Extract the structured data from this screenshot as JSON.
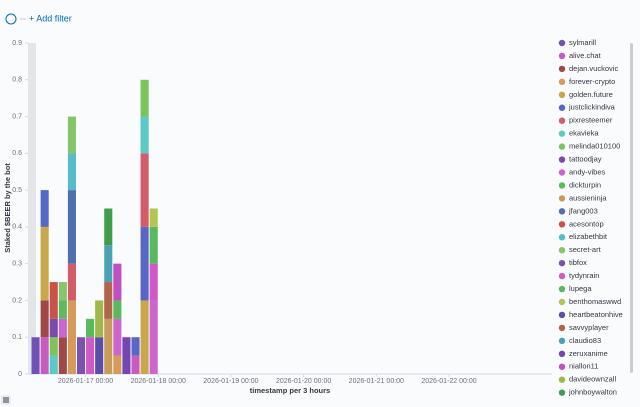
{
  "filter_bar": {
    "add_filter": "+ Add filter"
  },
  "chart_data": {
    "type": "bar",
    "stacked": true,
    "y_label": "Staked $BEER by the bot",
    "x_label": "timestamp per 3 hours",
    "ylim": [
      0,
      0.9
    ],
    "yticks": [
      0,
      0.1,
      0.2,
      0.3,
      0.4,
      0.5,
      0.6,
      0.7,
      0.8,
      0.9
    ],
    "xlim": [
      "2026-01-16 05:00",
      "2026-01-23 10:00"
    ],
    "xticks": [
      "2026-01-17 00:00",
      "2026-01-18 00:00",
      "2026-01-19 00:00",
      "2026-01-20 00:00",
      "2026-01-21 00:00",
      "2026-01-22 00:00"
    ],
    "bucket_hours": 3,
    "x": [
      "2026-01-16 06:00",
      "2026-01-16 09:00",
      "2026-01-16 12:00",
      "2026-01-16 15:00",
      "2026-01-16 18:00",
      "2026-01-16 21:00",
      "2026-01-17 00:00",
      "2026-01-17 03:00",
      "2026-01-17 06:00",
      "2026-01-17 09:00",
      "2026-01-17 12:00",
      "2026-01-17 15:00",
      "2026-01-17 18:00",
      "2026-01-17 21:00"
    ],
    "legend": "right",
    "series": [
      {
        "name": "sylmarill",
        "color": "#6f52b3",
        "values": [
          0.1,
          null,
          null,
          null,
          null,
          null,
          null,
          null,
          null,
          null,
          null,
          null,
          null,
          null
        ]
      },
      {
        "name": "alive.chat",
        "color": "#c75bc0",
        "values": [
          null,
          0.1,
          null,
          null,
          null,
          null,
          null,
          null,
          null,
          null,
          null,
          0.05,
          null,
          null
        ]
      },
      {
        "name": "dejan.vuckovic",
        "color": "#a04848",
        "values": [
          null,
          0.1,
          null,
          0.1,
          null,
          null,
          null,
          null,
          null,
          null,
          null,
          null,
          null,
          null
        ]
      },
      {
        "name": "forever-crypto",
        "color": "#d69a5a",
        "values": [
          null,
          null,
          null,
          null,
          0.2,
          null,
          null,
          null,
          null,
          0.05,
          null,
          null,
          null,
          null
        ]
      },
      {
        "name": "golden.future",
        "color": "#c9a84a",
        "values": [
          null,
          0.2,
          null,
          null,
          null,
          null,
          null,
          null,
          null,
          null,
          null,
          null,
          0.2,
          null
        ]
      },
      {
        "name": "justclickindiva",
        "color": "#5766c7",
        "values": [
          null,
          0.1,
          null,
          null,
          null,
          null,
          null,
          null,
          null,
          null,
          null,
          0.05,
          0.2,
          null
        ]
      },
      {
        "name": "pixresteemer",
        "color": "#d45c6a",
        "values": [
          null,
          null,
          null,
          null,
          0.1,
          null,
          null,
          null,
          null,
          null,
          null,
          null,
          0.2,
          null
        ]
      },
      {
        "name": "ekavieka",
        "color": "#5cc9c4",
        "values": [
          null,
          null,
          0.05,
          null,
          null,
          null,
          null,
          null,
          null,
          null,
          null,
          null,
          0.1,
          null
        ]
      },
      {
        "name": "melinda010100",
        "color": "#7cc35c",
        "values": [
          null,
          null,
          0.05,
          null,
          null,
          null,
          null,
          null,
          null,
          null,
          null,
          null,
          0.1,
          null
        ]
      },
      {
        "name": "tattoodjay",
        "color": "#7a4ba8",
        "values": [
          null,
          null,
          0.05,
          null,
          null,
          null,
          null,
          null,
          null,
          null,
          null,
          null,
          null,
          null
        ]
      },
      {
        "name": "andy-vibes",
        "color": "#cc66cc",
        "values": [
          null,
          null,
          null,
          0.05,
          null,
          null,
          null,
          null,
          null,
          0.1,
          null,
          null,
          null,
          0.2
        ]
      },
      {
        "name": "dickturpin",
        "color": "#5dbb5d",
        "values": [
          null,
          null,
          null,
          0.05,
          null,
          null,
          null,
          null,
          null,
          null,
          null,
          null,
          null,
          null
        ]
      },
      {
        "name": "aussieninja",
        "color": "#c69b5c",
        "values": [
          null,
          null,
          null,
          null,
          null,
          null,
          null,
          null,
          0.15,
          null,
          null,
          null,
          null,
          null
        ]
      },
      {
        "name": "jfang003",
        "color": "#4f6fae",
        "values": [
          null,
          null,
          null,
          null,
          0.2,
          null,
          null,
          null,
          null,
          null,
          null,
          null,
          null,
          null
        ]
      },
      {
        "name": "acesontop",
        "color": "#c9534a",
        "values": [
          null,
          null,
          0.1,
          null,
          null,
          null,
          null,
          null,
          null,
          null,
          null,
          null,
          null,
          null
        ]
      },
      {
        "name": "elizabethbit",
        "color": "#55bcc8",
        "values": [
          null,
          null,
          null,
          null,
          0.1,
          null,
          null,
          null,
          null,
          null,
          null,
          null,
          null,
          null
        ]
      },
      {
        "name": "secret-art",
        "color": "#86c56a",
        "values": [
          null,
          null,
          null,
          0.05,
          0.1,
          null,
          null,
          null,
          null,
          null,
          null,
          null,
          null,
          null
        ]
      },
      {
        "name": "tibfox",
        "color": "#7b52b0",
        "values": [
          null,
          null,
          null,
          null,
          null,
          0.1,
          null,
          null,
          null,
          null,
          null,
          null,
          null,
          null
        ]
      },
      {
        "name": "tydynrain",
        "color": "#cf5ac7",
        "values": [
          null,
          null,
          null,
          null,
          null,
          null,
          0.1,
          null,
          null,
          null,
          null,
          null,
          null,
          0.1
        ]
      },
      {
        "name": "lupega",
        "color": "#5cb85c",
        "values": [
          null,
          null,
          null,
          null,
          null,
          null,
          0.05,
          null,
          null,
          0.05,
          null,
          null,
          null,
          0.1
        ]
      },
      {
        "name": "benthomaswwd",
        "color": "#b3c653",
        "values": [
          null,
          null,
          null,
          null,
          null,
          null,
          null,
          null,
          null,
          null,
          null,
          null,
          null,
          0.05
        ]
      },
      {
        "name": "heartbeatonhive",
        "color": "#5a4fa8",
        "values": [
          null,
          null,
          null,
          null,
          null,
          null,
          null,
          0.1,
          null,
          null,
          null,
          null,
          null,
          null
        ]
      },
      {
        "name": "savvyplayer",
        "color": "#b26548",
        "values": [
          null,
          null,
          null,
          null,
          null,
          null,
          null,
          null,
          0.1,
          null,
          null,
          null,
          null,
          null
        ]
      },
      {
        "name": "claudio83",
        "color": "#4aa3b5",
        "values": [
          null,
          null,
          null,
          null,
          null,
          null,
          null,
          null,
          0.1,
          null,
          null,
          null,
          null,
          null
        ]
      },
      {
        "name": "zeruxanime",
        "color": "#7446b0",
        "values": [
          null,
          null,
          null,
          null,
          null,
          null,
          null,
          null,
          null,
          null,
          0.1,
          null,
          null,
          null
        ]
      },
      {
        "name": "niallon11",
        "color": "#c04fbf",
        "values": [
          null,
          null,
          null,
          null,
          null,
          null,
          null,
          null,
          null,
          0.1,
          null,
          null,
          null,
          null
        ]
      },
      {
        "name": "davideownzall",
        "color": "#a2b84d",
        "values": [
          null,
          null,
          null,
          null,
          null,
          null,
          null,
          0.1,
          null,
          null,
          null,
          null,
          null,
          null
        ]
      },
      {
        "name": "johnboywalton",
        "color": "#3e9e4a",
        "values": [
          null,
          null,
          null,
          null,
          null,
          null,
          null,
          null,
          0.1,
          null,
          null,
          null,
          null,
          null
        ]
      }
    ]
  }
}
